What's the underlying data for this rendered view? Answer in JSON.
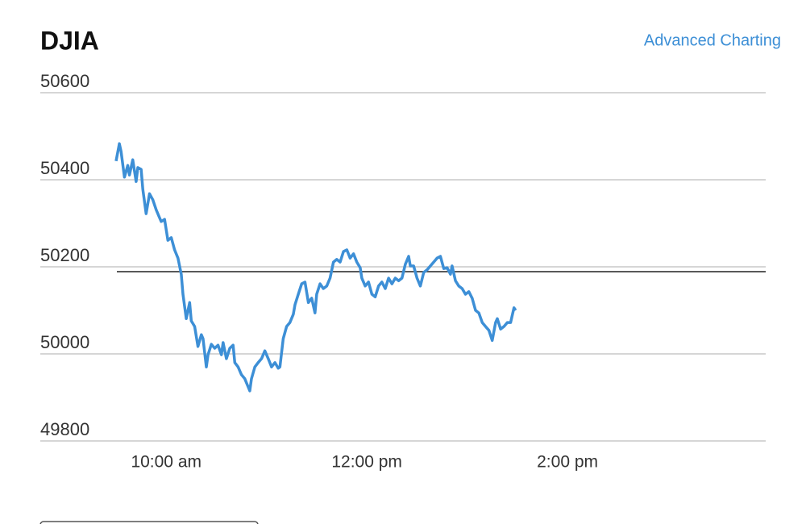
{
  "header": {
    "title": "DJIA",
    "link": "Advanced Charting"
  },
  "chart_data": {
    "type": "line",
    "x": [
      570,
      572,
      573,
      575,
      577,
      578,
      580,
      582,
      583,
      585,
      586,
      588,
      590,
      592,
      594,
      596,
      597,
      599,
      601,
      603,
      605,
      607,
      609,
      610,
      612,
      614,
      615,
      617,
      619,
      621,
      622,
      624,
      625,
      627,
      629,
      631,
      633,
      634,
      636,
      638,
      640,
      641,
      643,
      645,
      647,
      649,
      650,
      651,
      653,
      655,
      657,
      659,
      661,
      663,
      665,
      667,
      668,
      670,
      672,
      674,
      676,
      677,
      679,
      681,
      683,
      685,
      687,
      689,
      690,
      692,
      694,
      696,
      698,
      700,
      702,
      704,
      706,
      708,
      710,
      712,
      714,
      716,
      717,
      719,
      721,
      723,
      725,
      727,
      729,
      731,
      733,
      735,
      737,
      739,
      741,
      743,
      745,
      746,
      748,
      750,
      752,
      754,
      756,
      758,
      760,
      762,
      764,
      766,
      768,
      770,
      771,
      773,
      775,
      777,
      779,
      781,
      783,
      785,
      787,
      789,
      791,
      793,
      795,
      797,
      798,
      800,
      802,
      804,
      806,
      808,
      809
    ],
    "series": [
      {
        "name": "DJIA",
        "color": "#3d8fd6",
        "values": [
          50443,
          50483,
          50465,
          50406,
          50433,
          50411,
          50446,
          50396,
          50428,
          50424,
          50378,
          50322,
          50368,
          50354,
          50331,
          50313,
          50304,
          50309,
          50261,
          50267,
          50239,
          50220,
          50183,
          50137,
          50081,
          50118,
          50076,
          50063,
          50017,
          50044,
          50035,
          49970,
          49998,
          50022,
          50013,
          50020,
          49998,
          50026,
          49989,
          50013,
          50020,
          49980,
          49970,
          49952,
          49943,
          49924,
          49915,
          49943,
          49970,
          49980,
          49989,
          50007,
          49989,
          49970,
          49980,
          49967,
          49970,
          50035,
          50063,
          50072,
          50091,
          50113,
          50137,
          50161,
          50165,
          50118,
          50128,
          50094,
          50137,
          50161,
          50150,
          50156,
          50174,
          50211,
          50217,
          50211,
          50235,
          50239,
          50220,
          50230,
          50211,
          50198,
          50174,
          50156,
          50165,
          50137,
          50131,
          50156,
          50165,
          50150,
          50174,
          50161,
          50174,
          50168,
          50174,
          50206,
          50224,
          50202,
          50202,
          50174,
          50156,
          50187,
          50193,
          50202,
          50211,
          50220,
          50224,
          50196,
          50198,
          50183,
          50202,
          50168,
          50156,
          50150,
          50137,
          50143,
          50128,
          50100,
          50094,
          50072,
          50063,
          50054,
          50031,
          50072,
          50081,
          50057,
          50063,
          50072,
          50072,
          50106,
          50100
        ]
      }
    ],
    "reference_line": 50189,
    "reference_color": "#222222",
    "xlim": [
      570,
      960
    ],
    "xticks": [
      {
        "value": 600,
        "label": "10:00 am"
      },
      {
        "value": 720,
        "label": "12:00 pm"
      },
      {
        "value": 840,
        "label": "2:00 pm"
      }
    ],
    "ylim": [
      49800,
      50600
    ],
    "yticks": [
      49800,
      50000,
      50200,
      50400,
      50600
    ],
    "grid": true
  }
}
